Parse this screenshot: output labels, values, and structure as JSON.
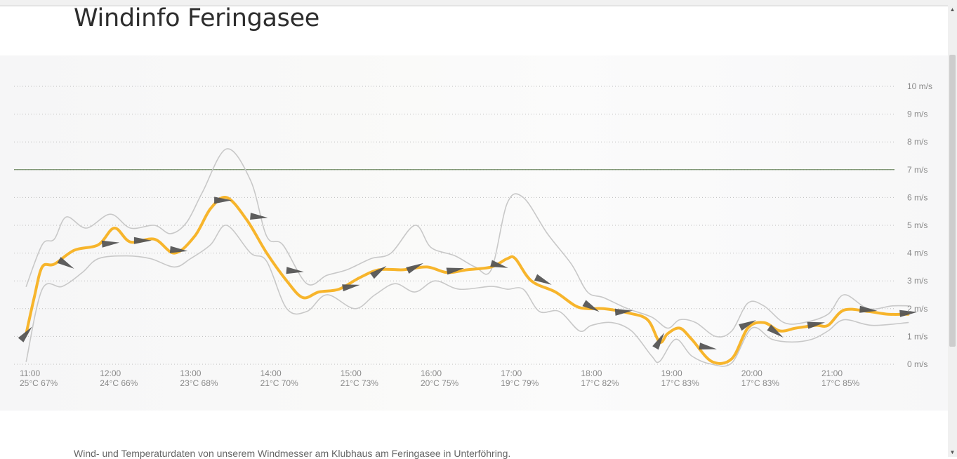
{
  "page": {
    "title": "Windinfo Feringasee",
    "description": "Wind- und Temperaturdaten von unserem Windmesser am Klubhaus am Feringasee in Unterföhring."
  },
  "chart_data": {
    "type": "line",
    "title": "",
    "ylim": [
      0,
      10
    ],
    "y_axis_side": "right",
    "y_ticks": [
      {
        "value": 0,
        "label": "0 m/s"
      },
      {
        "value": 1,
        "label": "1 m/s"
      },
      {
        "value": 2,
        "label": "2 m/s"
      },
      {
        "value": 3,
        "label": "3 m/s"
      },
      {
        "value": 4,
        "label": "4 m/s"
      },
      {
        "value": 5,
        "label": "5 m/s"
      },
      {
        "value": 6,
        "label": "6 m/s"
      },
      {
        "value": 7,
        "label": "7 m/s"
      },
      {
        "value": 8,
        "label": "8 m/s"
      },
      {
        "value": 9,
        "label": "9 m/s"
      },
      {
        "value": 10,
        "label": "10 m/s"
      }
    ],
    "xlim": [
      10.95,
      21.95
    ],
    "x_ticks": [
      {
        "value": 11,
        "time": "11:00",
        "weather": "25°C 67%"
      },
      {
        "value": 12,
        "time": "12:00",
        "weather": "24°C 66%"
      },
      {
        "value": 13,
        "time": "13:00",
        "weather": "23°C 68%"
      },
      {
        "value": 14,
        "time": "14:00",
        "weather": "21°C 70%"
      },
      {
        "value": 15,
        "time": "15:00",
        "weather": "21°C 73%"
      },
      {
        "value": 16,
        "time": "16:00",
        "weather": "20°C 75%"
      },
      {
        "value": 17,
        "time": "17:00",
        "weather": "19°C 79%"
      },
      {
        "value": 18,
        "time": "18:00",
        "weather": "17°C 82%"
      },
      {
        "value": 19,
        "time": "19:00",
        "weather": "17°C 83%"
      },
      {
        "value": 20,
        "time": "20:00",
        "weather": "17°C 83%"
      },
      {
        "value": 21,
        "time": "21:00",
        "weather": "17°C 85%"
      }
    ],
    "threshold": {
      "value": 7,
      "color": "#5c7a4e"
    },
    "grid": true,
    "series": [
      {
        "role": "max",
        "color": "#c8c8c8",
        "points": [
          [
            10.95,
            2.8
          ],
          [
            11.15,
            4.3
          ],
          [
            11.3,
            4.5
          ],
          [
            11.45,
            5.3
          ],
          [
            11.7,
            4.9
          ],
          [
            12.0,
            5.4
          ],
          [
            12.25,
            4.9
          ],
          [
            12.55,
            5.0
          ],
          [
            12.75,
            4.7
          ],
          [
            12.95,
            5.1
          ],
          [
            13.15,
            6.2
          ],
          [
            13.45,
            7.75
          ],
          [
            13.75,
            6.6
          ],
          [
            13.95,
            4.6
          ],
          [
            14.15,
            4.3
          ],
          [
            14.45,
            2.9
          ],
          [
            14.7,
            3.2
          ],
          [
            14.95,
            3.4
          ],
          [
            15.25,
            3.8
          ],
          [
            15.5,
            4.0
          ],
          [
            15.8,
            5.0
          ],
          [
            16.0,
            4.2
          ],
          [
            16.3,
            3.9
          ],
          [
            16.55,
            3.5
          ],
          [
            16.75,
            3.4
          ],
          [
            16.95,
            5.8
          ],
          [
            17.15,
            6.0
          ],
          [
            17.45,
            4.7
          ],
          [
            17.75,
            3.6
          ],
          [
            17.95,
            2.6
          ],
          [
            18.15,
            2.4
          ],
          [
            18.45,
            2.0
          ],
          [
            18.75,
            1.7
          ],
          [
            18.95,
            1.3
          ],
          [
            19.1,
            1.6
          ],
          [
            19.3,
            1.5
          ],
          [
            19.55,
            1.0
          ],
          [
            19.75,
            1.2
          ],
          [
            19.95,
            2.2
          ],
          [
            20.15,
            2.1
          ],
          [
            20.4,
            1.5
          ],
          [
            20.65,
            1.5
          ],
          [
            20.95,
            1.8
          ],
          [
            21.15,
            2.5
          ],
          [
            21.45,
            2.0
          ],
          [
            21.75,
            2.1
          ],
          [
            21.95,
            2.1
          ]
        ]
      },
      {
        "role": "min",
        "color": "#c8c8c8",
        "points": [
          [
            10.95,
            0.1
          ],
          [
            11.15,
            2.7
          ],
          [
            11.4,
            2.8
          ],
          [
            11.65,
            3.3
          ],
          [
            11.85,
            3.8
          ],
          [
            12.2,
            3.9
          ],
          [
            12.5,
            3.8
          ],
          [
            12.8,
            3.5
          ],
          [
            13.0,
            3.8
          ],
          [
            13.25,
            4.3
          ],
          [
            13.45,
            5.0
          ],
          [
            13.75,
            4.0
          ],
          [
            13.95,
            3.7
          ],
          [
            14.2,
            2.0
          ],
          [
            14.45,
            1.9
          ],
          [
            14.7,
            2.5
          ],
          [
            15.05,
            2.0
          ],
          [
            15.3,
            2.5
          ],
          [
            15.55,
            2.9
          ],
          [
            15.8,
            2.6
          ],
          [
            16.05,
            3.0
          ],
          [
            16.35,
            2.7
          ],
          [
            16.75,
            2.8
          ],
          [
            16.95,
            2.7
          ],
          [
            17.15,
            2.7
          ],
          [
            17.35,
            1.9
          ],
          [
            17.6,
            1.9
          ],
          [
            17.85,
            1.2
          ],
          [
            18.0,
            1.4
          ],
          [
            18.25,
            1.5
          ],
          [
            18.5,
            1.2
          ],
          [
            18.75,
            0.3
          ],
          [
            18.85,
            0.1
          ],
          [
            19.05,
            0.9
          ],
          [
            19.25,
            0.3
          ],
          [
            19.5,
            0.0
          ],
          [
            19.75,
            0.05
          ],
          [
            20.0,
            1.3
          ],
          [
            20.25,
            0.9
          ],
          [
            20.5,
            0.8
          ],
          [
            20.75,
            0.9
          ],
          [
            20.95,
            1.2
          ],
          [
            21.15,
            1.6
          ],
          [
            21.5,
            1.4
          ],
          [
            21.95,
            1.5
          ]
        ]
      },
      {
        "role": "average",
        "color": "#f7b52c",
        "points": [
          [
            10.95,
            1.1
          ],
          [
            11.05,
            2.4
          ],
          [
            11.15,
            3.5
          ],
          [
            11.3,
            3.6
          ],
          [
            11.55,
            4.1
          ],
          [
            11.85,
            4.3
          ],
          [
            12.05,
            4.9
          ],
          [
            12.25,
            4.4
          ],
          [
            12.55,
            4.5
          ],
          [
            12.8,
            4.0
          ],
          [
            13.05,
            4.6
          ],
          [
            13.25,
            5.6
          ],
          [
            13.45,
            6.0
          ],
          [
            13.7,
            5.2
          ],
          [
            13.95,
            4.0
          ],
          [
            14.2,
            3.0
          ],
          [
            14.4,
            2.4
          ],
          [
            14.6,
            2.6
          ],
          [
            14.85,
            2.7
          ],
          [
            15.1,
            3.1
          ],
          [
            15.35,
            3.4
          ],
          [
            15.65,
            3.4
          ],
          [
            15.95,
            3.5
          ],
          [
            16.2,
            3.3
          ],
          [
            16.45,
            3.4
          ],
          [
            16.75,
            3.5
          ],
          [
            16.95,
            3.8
          ],
          [
            17.05,
            3.8
          ],
          [
            17.25,
            3.0
          ],
          [
            17.55,
            2.6
          ],
          [
            17.8,
            2.1
          ],
          [
            17.95,
            2.0
          ],
          [
            18.15,
            2.0
          ],
          [
            18.45,
            1.85
          ],
          [
            18.7,
            1.6
          ],
          [
            18.85,
            0.8
          ],
          [
            18.95,
            1.1
          ],
          [
            19.1,
            1.3
          ],
          [
            19.25,
            0.9
          ],
          [
            19.5,
            0.1
          ],
          [
            19.75,
            0.2
          ],
          [
            19.95,
            1.3
          ],
          [
            20.15,
            1.5
          ],
          [
            20.35,
            1.2
          ],
          [
            20.55,
            1.3
          ],
          [
            20.8,
            1.4
          ],
          [
            20.95,
            1.4
          ],
          [
            21.15,
            1.95
          ],
          [
            21.45,
            1.9
          ],
          [
            21.7,
            1.8
          ],
          [
            21.95,
            1.8
          ]
        ]
      }
    ],
    "direction_arrows": {
      "color": "#555555",
      "items": [
        {
          "x": 10.95,
          "y": 1.1,
          "angle": -50
        },
        {
          "x": 11.45,
          "y": 3.6,
          "angle": 30
        },
        {
          "x": 12.0,
          "y": 4.35,
          "angle": -5
        },
        {
          "x": 12.4,
          "y": 4.45,
          "angle": 0
        },
        {
          "x": 12.85,
          "y": 4.1,
          "angle": 5
        },
        {
          "x": 13.4,
          "y": 5.9,
          "angle": 0
        },
        {
          "x": 13.85,
          "y": 5.3,
          "angle": 5
        },
        {
          "x": 14.3,
          "y": 3.35,
          "angle": 5
        },
        {
          "x": 15.0,
          "y": 2.8,
          "angle": -10
        },
        {
          "x": 15.35,
          "y": 3.35,
          "angle": -35
        },
        {
          "x": 15.8,
          "y": 3.5,
          "angle": -25
        },
        {
          "x": 16.3,
          "y": 3.4,
          "angle": -10
        },
        {
          "x": 16.85,
          "y": 3.55,
          "angle": 15
        },
        {
          "x": 17.4,
          "y": 3.0,
          "angle": 25
        },
        {
          "x": 18.0,
          "y": 2.05,
          "angle": 30
        },
        {
          "x": 18.4,
          "y": 1.9,
          "angle": -5
        },
        {
          "x": 18.85,
          "y": 0.85,
          "angle": -60
        },
        {
          "x": 19.45,
          "y": 0.6,
          "angle": 10
        },
        {
          "x": 19.95,
          "y": 1.45,
          "angle": -25
        },
        {
          "x": 20.3,
          "y": 1.15,
          "angle": 35
        },
        {
          "x": 20.8,
          "y": 1.45,
          "angle": -10
        },
        {
          "x": 21.45,
          "y": 1.95,
          "angle": 5
        },
        {
          "x": 21.95,
          "y": 1.85,
          "angle": -5
        }
      ]
    }
  }
}
